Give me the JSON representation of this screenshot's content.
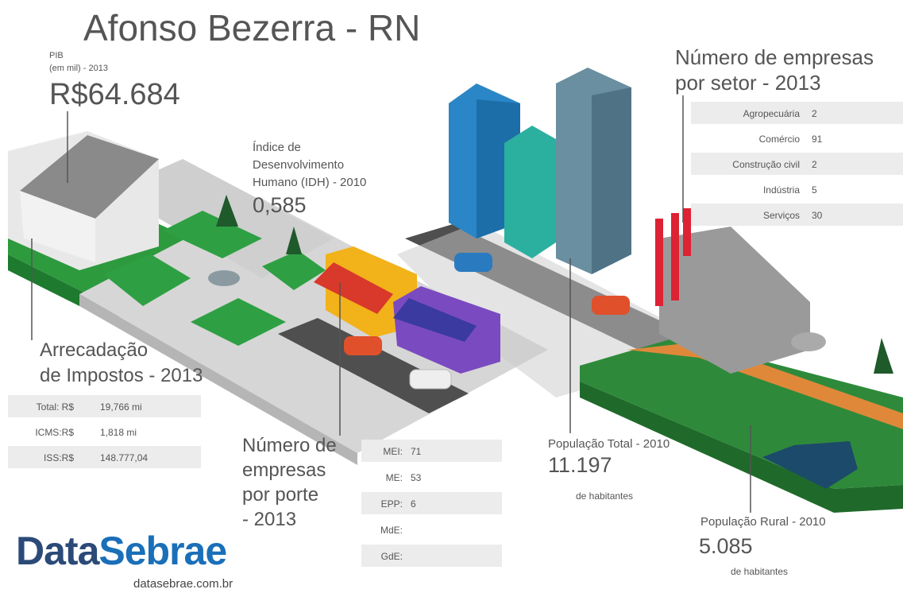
{
  "title": "Afonso Bezerra - RN",
  "pib": {
    "label": "PIB",
    "unit": "(em mil) - 2013",
    "value": "R$64.684"
  },
  "idh": {
    "label": [
      "Índice de",
      "Desenvolvimento",
      "Humano (IDH) - 2010"
    ],
    "value": "0,585"
  },
  "empresas_setor": {
    "title": [
      "Número de empresas",
      "por setor - 2013"
    ],
    "rows": [
      [
        "Agropecuária",
        "2"
      ],
      [
        "Comércio",
        "91"
      ],
      [
        "Construção civil",
        "2"
      ],
      [
        "Indústria",
        "5"
      ],
      [
        "Serviços",
        "30"
      ]
    ]
  },
  "impostos": {
    "title": [
      "Arrecadação",
      "de Impostos - 2013"
    ],
    "rows": [
      [
        "Total: R$",
        "19,766 mi"
      ],
      [
        "ICMS:R$",
        "1,818 mi"
      ],
      [
        "ISS:R$",
        "148.777,04"
      ]
    ]
  },
  "empresas_porte": {
    "title": [
      "Número de",
      "empresas",
      "por porte",
      "- 2013"
    ],
    "rows": [
      [
        "MEI:",
        "71"
      ],
      [
        "ME:",
        "53"
      ],
      [
        "EPP:",
        "6"
      ],
      [
        "MdE:"
      ],
      [
        "GdE:"
      ]
    ]
  },
  "populacao_total": {
    "label": "População Total - 2010",
    "value": "11.197",
    "unit": "de habitantes"
  },
  "populacao_rural": {
    "label": "População Rural - 2010",
    "value": "5.085",
    "unit": "de habitantes"
  },
  "logo": {
    "data": "Data",
    "sebrae": "Sebrae",
    "url": "datasebrae.com.br"
  }
}
